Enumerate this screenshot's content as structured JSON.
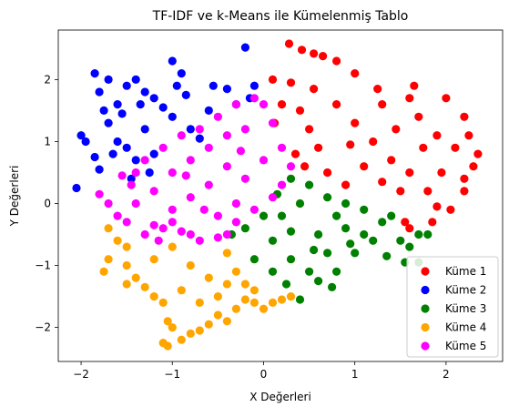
{
  "chart_data": {
    "type": "scatter",
    "title": "TF-IDF ve k-Means ile Kümelenmiş Tablo",
    "xlabel": "X Değerleri",
    "ylabel": "Y Değerleri",
    "xlim": [
      -2.25,
      2.62
    ],
    "ylim": [
      -2.55,
      2.8
    ],
    "xticks": [
      -2,
      -1,
      0,
      1,
      2
    ],
    "yticks": [
      -2,
      -1,
      0,
      1,
      2
    ],
    "xtick_labels": [
      "−2",
      "−1",
      "0",
      "1",
      "2"
    ],
    "ytick_labels": [
      "−2",
      "−1",
      "0",
      "1",
      "2"
    ],
    "grid": false,
    "legend_position": "lower-right",
    "series": [
      {
        "name": "Küme 1",
        "color": "#ff0000",
        "points": [
          [
            0.28,
            2.58
          ],
          [
            0.42,
            2.48
          ],
          [
            0.55,
            2.42
          ],
          [
            0.65,
            2.38
          ],
          [
            0.8,
            2.3
          ],
          [
            0.1,
            2.0
          ],
          [
            0.3,
            1.95
          ],
          [
            1.0,
            2.1
          ],
          [
            1.6,
            1.7
          ],
          [
            2.0,
            1.7
          ],
          [
            2.2,
            1.4
          ],
          [
            2.35,
            0.8
          ],
          [
            2.3,
            0.6
          ],
          [
            2.2,
            0.4
          ],
          [
            2.2,
            0.2
          ],
          [
            2.05,
            -0.1
          ],
          [
            1.85,
            -0.3
          ],
          [
            1.6,
            -0.4
          ],
          [
            1.55,
            -0.3
          ],
          [
            0.4,
            1.5
          ],
          [
            0.5,
            1.2
          ],
          [
            0.6,
            0.9
          ],
          [
            0.8,
            1.6
          ],
          [
            1.0,
            1.3
          ],
          [
            1.2,
            1.0
          ],
          [
            1.4,
            0.7
          ],
          [
            1.6,
            0.5
          ],
          [
            1.8,
            0.2
          ],
          [
            1.9,
            1.1
          ],
          [
            1.7,
            1.4
          ],
          [
            1.3,
            1.6
          ],
          [
            1.1,
            0.6
          ],
          [
            0.9,
            0.3
          ],
          [
            1.5,
            0.2
          ],
          [
            2.1,
            0.9
          ],
          [
            1.95,
            0.5
          ],
          [
            0.35,
            0.8
          ],
          [
            0.7,
            0.5
          ],
          [
            1.25,
            1.85
          ],
          [
            0.55,
            1.85
          ],
          [
            0.2,
            1.6
          ],
          [
            1.75,
            0.9
          ],
          [
            1.45,
            1.2
          ],
          [
            2.25,
            1.1
          ],
          [
            0.95,
            0.95
          ],
          [
            1.3,
            0.35
          ],
          [
            1.9,
            -0.05
          ],
          [
            0.45,
            0.6
          ],
          [
            1.65,
            1.9
          ],
          [
            0.12,
            1.3
          ]
        ]
      },
      {
        "name": "Küme 2",
        "color": "#0000ff",
        "points": [
          [
            -2.05,
            0.25
          ],
          [
            -2.0,
            1.1
          ],
          [
            -1.95,
            1.0
          ],
          [
            -1.85,
            0.75
          ],
          [
            -1.8,
            0.55
          ],
          [
            -1.8,
            1.8
          ],
          [
            -1.85,
            2.1
          ],
          [
            -1.7,
            2.0
          ],
          [
            -1.6,
            1.6
          ],
          [
            -1.5,
            1.9
          ],
          [
            -1.4,
            2.0
          ],
          [
            -1.3,
            1.8
          ],
          [
            -1.2,
            1.7
          ],
          [
            -1.0,
            2.3
          ],
          [
            -0.9,
            2.1
          ],
          [
            -0.55,
            1.9
          ],
          [
            -0.2,
            2.52
          ],
          [
            -0.1,
            1.9
          ],
          [
            -1.6,
            1.0
          ],
          [
            -1.5,
            0.9
          ],
          [
            -1.4,
            0.7
          ],
          [
            -1.3,
            1.2
          ],
          [
            -1.25,
            0.5
          ],
          [
            -1.0,
            1.4
          ],
          [
            -0.8,
            1.2
          ],
          [
            -0.6,
            1.5
          ],
          [
            -0.3,
            1.6
          ],
          [
            -0.15,
            1.7
          ],
          [
            -1.7,
            1.3
          ],
          [
            -1.55,
            1.45
          ],
          [
            -1.1,
            1.55
          ],
          [
            -0.85,
            1.75
          ],
          [
            -0.4,
            1.85
          ],
          [
            -1.35,
            1.6
          ],
          [
            -1.65,
            0.8
          ],
          [
            -1.2,
            0.8
          ],
          [
            -0.7,
            1.05
          ],
          [
            -1.45,
            0.4
          ],
          [
            -1.75,
            1.5
          ],
          [
            -0.95,
            1.9
          ]
        ]
      },
      {
        "name": "Küme 3",
        "color": "#008000",
        "points": [
          [
            0.3,
            0.4
          ],
          [
            0.5,
            0.3
          ],
          [
            0.7,
            0.1
          ],
          [
            0.9,
            0.0
          ],
          [
            1.1,
            -0.1
          ],
          [
            1.3,
            -0.3
          ],
          [
            1.5,
            -0.6
          ],
          [
            1.6,
            -0.7
          ],
          [
            1.7,
            -0.5
          ],
          [
            1.7,
            -0.95
          ],
          [
            1.8,
            -0.5
          ],
          [
            0.0,
            -0.2
          ],
          [
            -0.2,
            -0.4
          ],
          [
            -0.35,
            -0.5
          ],
          [
            0.1,
            -0.6
          ],
          [
            0.3,
            -0.9
          ],
          [
            0.5,
            -1.1
          ],
          [
            0.4,
            -1.55
          ],
          [
            0.6,
            -1.25
          ],
          [
            0.8,
            -1.1
          ],
          [
            1.0,
            -0.8
          ],
          [
            1.2,
            -0.6
          ],
          [
            0.2,
            -0.2
          ],
          [
            0.6,
            -0.5
          ],
          [
            0.9,
            -0.4
          ],
          [
            0.1,
            -1.1
          ],
          [
            -0.1,
            -0.9
          ],
          [
            0.7,
            -0.8
          ],
          [
            1.4,
            -0.2
          ],
          [
            1.1,
            -0.5
          ],
          [
            0.4,
            0.0
          ],
          [
            0.8,
            -0.2
          ],
          [
            0.3,
            -0.45
          ],
          [
            1.35,
            -0.85
          ],
          [
            0.55,
            -0.75
          ],
          [
            0.95,
            -0.65
          ],
          [
            0.25,
            -1.3
          ],
          [
            0.15,
            0.15
          ],
          [
            0.75,
            -1.35
          ],
          [
            1.55,
            -0.95
          ]
        ]
      },
      {
        "name": "Küme 4",
        "color": "#ffa500",
        "points": [
          [
            -1.7,
            -0.4
          ],
          [
            -1.6,
            -0.6
          ],
          [
            -1.5,
            -0.7
          ],
          [
            -1.7,
            -0.9
          ],
          [
            -1.75,
            -1.1
          ],
          [
            -1.5,
            -1.0
          ],
          [
            -1.4,
            -1.2
          ],
          [
            -1.5,
            -1.3
          ],
          [
            -1.3,
            -1.35
          ],
          [
            -1.2,
            -1.5
          ],
          [
            -1.1,
            -1.6
          ],
          [
            -1.05,
            -1.9
          ],
          [
            -1.0,
            -2.0
          ],
          [
            -1.1,
            -2.25
          ],
          [
            -1.05,
            -2.3
          ],
          [
            -0.9,
            -2.2
          ],
          [
            -0.8,
            -2.1
          ],
          [
            -0.7,
            -2.05
          ],
          [
            -0.6,
            -1.95
          ],
          [
            -0.5,
            -1.8
          ],
          [
            -0.4,
            -1.9
          ],
          [
            -0.3,
            -1.7
          ],
          [
            -0.2,
            -1.55
          ],
          [
            -0.1,
            -1.6
          ],
          [
            0.0,
            -1.7
          ],
          [
            0.1,
            -1.6
          ],
          [
            0.2,
            -1.55
          ],
          [
            0.3,
            -1.5
          ],
          [
            -0.8,
            -1.0
          ],
          [
            -0.6,
            -1.2
          ],
          [
            -0.4,
            -1.3
          ],
          [
            -0.3,
            -1.1
          ],
          [
            -0.9,
            -1.4
          ],
          [
            -0.7,
            -1.6
          ],
          [
            -0.5,
            -1.5
          ],
          [
            -0.2,
            -1.3
          ],
          [
            -1.0,
            -0.7
          ],
          [
            -1.2,
            -0.9
          ],
          [
            -0.4,
            -0.8
          ],
          [
            -0.1,
            -1.4
          ]
        ]
      },
      {
        "name": "Küme 5",
        "color": "#ff00ff",
        "points": [
          [
            -1.8,
            0.15
          ],
          [
            -1.7,
            0.0
          ],
          [
            -1.6,
            -0.2
          ],
          [
            -1.5,
            -0.3
          ],
          [
            -1.45,
            0.3
          ],
          [
            -1.3,
            -0.5
          ],
          [
            -1.2,
            -0.35
          ],
          [
            -1.1,
            -0.4
          ],
          [
            -1.0,
            -0.3
          ],
          [
            -0.9,
            -0.45
          ],
          [
            -0.8,
            -0.5
          ],
          [
            -0.7,
            -0.6
          ],
          [
            -0.5,
            -0.55
          ],
          [
            -0.4,
            -0.5
          ],
          [
            -0.3,
            -0.3
          ],
          [
            -0.1,
            -0.1
          ],
          [
            0.1,
            0.1
          ],
          [
            0.2,
            0.3
          ],
          [
            0.3,
            0.6
          ],
          [
            0.2,
            0.9
          ],
          [
            0.1,
            1.3
          ],
          [
            0.0,
            1.6
          ],
          [
            -0.1,
            1.7
          ],
          [
            -0.3,
            1.6
          ],
          [
            -0.5,
            1.4
          ],
          [
            -0.7,
            1.2
          ],
          [
            -0.9,
            1.1
          ],
          [
            -1.1,
            0.9
          ],
          [
            -1.3,
            0.7
          ],
          [
            -1.4,
            0.5
          ],
          [
            -1.2,
            0.2
          ],
          [
            -1.0,
            0.5
          ],
          [
            -0.8,
            0.7
          ],
          [
            -0.6,
            0.9
          ],
          [
            -0.4,
            1.1
          ],
          [
            -0.2,
            1.2
          ],
          [
            -0.4,
            0.6
          ],
          [
            -0.6,
            0.3
          ],
          [
            -0.8,
            0.1
          ],
          [
            -1.0,
            -0.1
          ],
          [
            -0.2,
            0.4
          ],
          [
            0.0,
            0.7
          ],
          [
            -0.3,
            0.0
          ],
          [
            -0.5,
            -0.2
          ],
          [
            -1.4,
            0.0
          ],
          [
            -1.15,
            -0.6
          ],
          [
            -0.85,
            0.45
          ],
          [
            -0.25,
            0.85
          ],
          [
            -0.65,
            -0.1
          ],
          [
            -1.55,
            0.45
          ]
        ]
      }
    ]
  }
}
